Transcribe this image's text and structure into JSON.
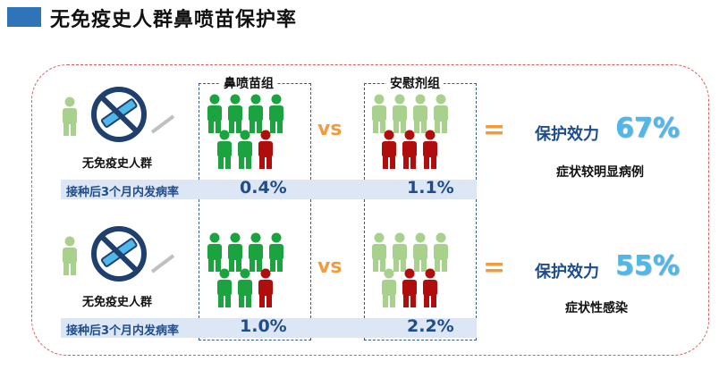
{
  "title": "无免疫史人群鼻喷苗保护率",
  "groups": {
    "vaccine": "鼻喷苗组",
    "placebo": "安慰剂组"
  },
  "vs": "vs",
  "equals": "=",
  "rows": [
    {
      "population": "无免疫史人群",
      "rate_label": "接种后3个月内发病率",
      "vaccine_rate": "0.4%",
      "placebo_rate": "1.1%",
      "efficacy_label": "保护效力",
      "efficacy_value": "67%",
      "outcome": "症状较明显病例"
    },
    {
      "population": "无免疫史人群",
      "rate_label": "接种后3个月内发病率",
      "vaccine_rate": "1.0%",
      "placebo_rate": "2.2%",
      "efficacy_label": "保护效力",
      "efficacy_value": "55%",
      "outcome": "症状性感染"
    }
  ],
  "colors": {
    "green": "#1aa33e",
    "light_green": "#a9d18e",
    "red": "#b00d0d",
    "accent": "#f29b3c",
    "blue": "#1f4d8c"
  }
}
